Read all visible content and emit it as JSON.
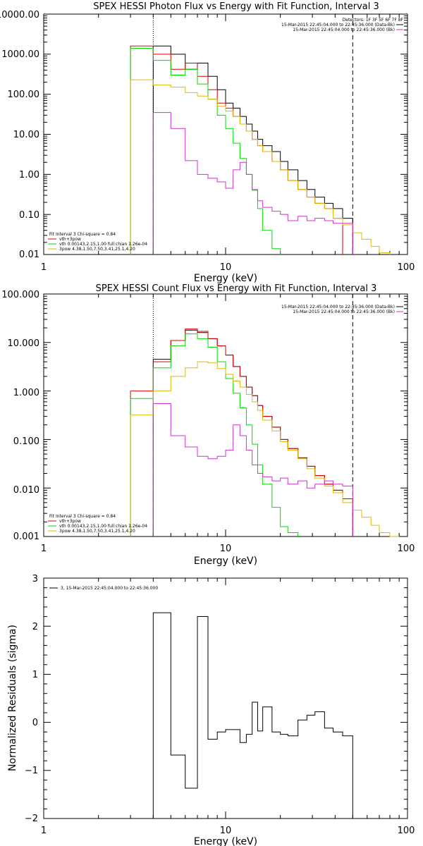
{
  "chart_data": [
    {
      "type": "line",
      "title": "SPEX HESSI Photon Flux vs Energy with Fit Function, Interval 3",
      "xlabel": "Energy (keV)",
      "ylabel": "",
      "xscale": "log",
      "yscale": "log",
      "xlim": [
        1,
        100
      ],
      "ylim": [
        0.01,
        10000
      ],
      "xticks": [
        "1",
        "10",
        "100"
      ],
      "yticks": [
        "10000.00",
        "1000.00",
        "100.00",
        "10.00",
        "1.00",
        "0.10",
        "0.01"
      ],
      "top_right_legend": [
        {
          "text": "Detectors: 1F 3F 5F 6F 7F 8F",
          "color": "#000000"
        },
        {
          "text": "15-Mar-2015 22:45:04.000 to 22:45:36.000 (Data-Bk)",
          "color": "#000000"
        },
        {
          "text": "15-Mar-2015 22:45:04.000 to 22:45:36.000 (Bk)",
          "color": "#cc33cc"
        }
      ],
      "bottom_left_legend": [
        {
          "text": "Fit Interval 3   Chi-square = 0.84",
          "color": "#000000"
        },
        {
          "text": "vth+3pow",
          "color": "#dd0000"
        },
        {
          "text": "vth 0.00143,2.15,1.00  full chian 1.26e-04",
          "color": "#00dd00"
        },
        {
          "text": "3pow 4.38,1.50,7.50,3.41,25.1,4.20",
          "color": "#ddbb00"
        }
      ],
      "edges": [
        3,
        4,
        5,
        6,
        7,
        8,
        9,
        10,
        11,
        12,
        13,
        14,
        15,
        16,
        18,
        20,
        22,
        25,
        28,
        31,
        35,
        39,
        44,
        50,
        56,
        63,
        70,
        80,
        90
      ],
      "vlines": [
        {
          "x": 4,
          "style": "dotted"
        },
        {
          "x": 50,
          "style": "dashed"
        }
      ],
      "series": [
        {
          "name": "Data-Bk",
          "color": "#000000",
          "x_range": [
            4,
            50
          ],
          "values": [
            1600,
            1000,
            420,
            600,
            280,
            130,
            60,
            45,
            28,
            18,
            12,
            7.5,
            5.2,
            3.7,
            2.1,
            1.3,
            0.7,
            0.42,
            0.27,
            0.19,
            0.14,
            0.08
          ]
        },
        {
          "name": "vth+3pow",
          "color": "#dd0000",
          "x_range": [
            3,
            50
          ],
          "values": [
            1600,
            1000,
            420,
            600,
            280,
            130,
            60,
            45,
            28,
            18,
            12,
            7.5,
            5.2,
            3.7,
            2.1,
            1.3,
            0.7,
            0.42,
            0.27,
            0.19,
            0.14,
            0.08
          ]
        },
        {
          "name": "vth",
          "color": "#00dd00",
          "x_range": [
            3,
            25
          ],
          "values": [
            1400,
            700,
            300,
            420,
            180,
            75,
            30,
            14,
            6,
            2.5,
            1.0,
            0.4,
            0.14,
            0.04,
            0.014
          ]
        },
        {
          "name": "3pow",
          "color": "#ddbb00",
          "x_range": [
            3,
            80
          ],
          "values": [
            230,
            170,
            150,
            110,
            90,
            75,
            50,
            38,
            28,
            18,
            12,
            7.5,
            5.2,
            3.7,
            2.1,
            1.3,
            0.7,
            0.42,
            0.27,
            0.19,
            0.14,
            0.08,
            0.055,
            0.035,
            0.024,
            0.016,
            0.011
          ]
        },
        {
          "name": "Bk",
          "color": "#cc33cc",
          "x_range": [
            4,
            50
          ],
          "values": [
            35,
            14,
            2.2,
            1.0,
            0.8,
            0.65,
            0.45,
            1.3,
            2.0,
            1.0,
            0.42,
            0.22,
            0.15,
            0.12,
            0.1,
            0.07,
            0.09,
            0.07,
            0.08,
            0.07,
            0.06,
            0.06
          ]
        }
      ]
    },
    {
      "type": "line",
      "title": "SPEX HESSI Count Flux vs Energy with Fit Function, Interval 3",
      "xlabel": "Energy (keV)",
      "ylabel": "",
      "xscale": "log",
      "yscale": "log",
      "xlim": [
        1,
        100
      ],
      "ylim": [
        0.001,
        100
      ],
      "xticks": [
        "1",
        "10",
        "100"
      ],
      "yticks": [
        "100.000",
        "10.000",
        "1.000",
        "0.100",
        "0.010",
        "0.001"
      ],
      "top_right_legend": [
        {
          "text": "15-Mar-2015 22:45:04.000 to 22:45:36.000 (Data-Bk)",
          "color": "#000000"
        },
        {
          "text": "15-Mar-2015 22:45:04.000 to 22:45:36.000 (Bk)",
          "color": "#cc33cc"
        }
      ],
      "bottom_left_legend": [
        {
          "text": "Fit Interval 3   Chi-square = 0.84",
          "color": "#000000"
        },
        {
          "text": "vth+3pow",
          "color": "#dd0000"
        },
        {
          "text": "vth 0.00143,2.15,1.00  full chian 1.26e-04",
          "color": "#00dd00"
        },
        {
          "text": "3pow 4.38,1.50,7.50,3.41,25.1,4.20",
          "color": "#ddbb00"
        }
      ],
      "edges": [
        3,
        4,
        5,
        6,
        7,
        8,
        9,
        10,
        11,
        12,
        13,
        14,
        15,
        16,
        18,
        20,
        22,
        25,
        28,
        31,
        35,
        39,
        44,
        50,
        56,
        63,
        70,
        80,
        90
      ],
      "vlines": [
        {
          "x": 4,
          "style": "dotted"
        },
        {
          "x": 50,
          "style": "dashed"
        }
      ],
      "series": [
        {
          "name": "Data-Bk",
          "color": "#000000",
          "x_range": [
            4,
            50
          ],
          "values": [
            4.5,
            11,
            18,
            16,
            12,
            8.5,
            5.5,
            3.2,
            2.0,
            1.2,
            0.8,
            0.5,
            0.3,
            0.18,
            0.1,
            0.065,
            0.042,
            0.028,
            0.018,
            0.012,
            0.009,
            0.006
          ]
        },
        {
          "name": "vth+3pow",
          "color": "#dd0000",
          "x_range": [
            3,
            50
          ],
          "values": [
            1.0,
            4.0,
            11,
            19,
            17,
            12,
            8.5,
            5.5,
            3.2,
            2.0,
            1.2,
            0.8,
            0.5,
            0.3,
            0.18,
            0.1,
            0.065,
            0.042,
            0.028,
            0.018,
            0.012,
            0.009,
            0.006
          ]
        },
        {
          "name": "vth",
          "color": "#00dd00",
          "x_range": [
            3,
            25
          ],
          "values": [
            0.7,
            3.0,
            8.5,
            15,
            12,
            8,
            4,
            1.8,
            0.9,
            0.45,
            0.2,
            0.08,
            0.03,
            0.012,
            0.004,
            0.0016,
            0.0012
          ]
        },
        {
          "name": "3pow",
          "color": "#ddbb00",
          "x_range": [
            3,
            90
          ],
          "values": [
            0.32,
            1.0,
            2.0,
            3.0,
            4.0,
            3.8,
            2.9,
            2.2,
            1.6,
            1.2,
            0.85,
            0.6,
            0.4,
            0.25,
            0.15,
            0.09,
            0.06,
            0.04,
            0.025,
            0.016,
            0.011,
            0.008,
            0.005,
            0.0035,
            0.0025,
            0.0017,
            0.0012,
            0.001
          ]
        },
        {
          "name": "Bk",
          "color": "#cc33cc",
          "x_range": [
            4,
            50
          ],
          "values": [
            0.55,
            0.12,
            0.07,
            0.045,
            0.04,
            0.045,
            0.06,
            0.2,
            0.12,
            0.06,
            0.03,
            0.02,
            0.017,
            0.014,
            0.016,
            0.012,
            0.014,
            0.01,
            0.012,
            0.014,
            0.012,
            0.011
          ]
        }
      ]
    },
    {
      "type": "line",
      "title": "",
      "xlabel": "Energy (keV)",
      "ylabel": "Normalized Residuals (sigma)",
      "xscale": "log",
      "yscale": "linear",
      "xlim": [
        1,
        100
      ],
      "ylim": [
        -2,
        3
      ],
      "xticks": [
        "1",
        "10",
        "100"
      ],
      "yticks": [
        "3",
        "2",
        "1",
        "0",
        "−1",
        "−2"
      ],
      "legend": [
        {
          "text": "3, 15-Mar-2015 22:45:04.000 to 22:45:36.000",
          "color": "#000000"
        }
      ],
      "series": [
        {
          "name": "3, 15-Mar-2015 22:45:04.000 to 22:45:36.000",
          "color": "#000000",
          "edges": [
            4,
            5,
            6,
            7,
            8,
            9,
            10,
            11,
            12,
            13,
            14,
            15,
            16,
            18,
            20,
            22,
            25,
            28,
            31,
            35,
            39,
            44,
            50
          ],
          "values": [
            2.28,
            -0.68,
            -1.37,
            2.2,
            -0.35,
            -0.2,
            -0.15,
            -0.15,
            -0.42,
            -0.25,
            0.42,
            -0.18,
            0.32,
            -0.2,
            -0.25,
            -0.28,
            0.05,
            0.15,
            0.22,
            -0.12,
            -0.2,
            -0.28
          ]
        }
      ]
    }
  ]
}
